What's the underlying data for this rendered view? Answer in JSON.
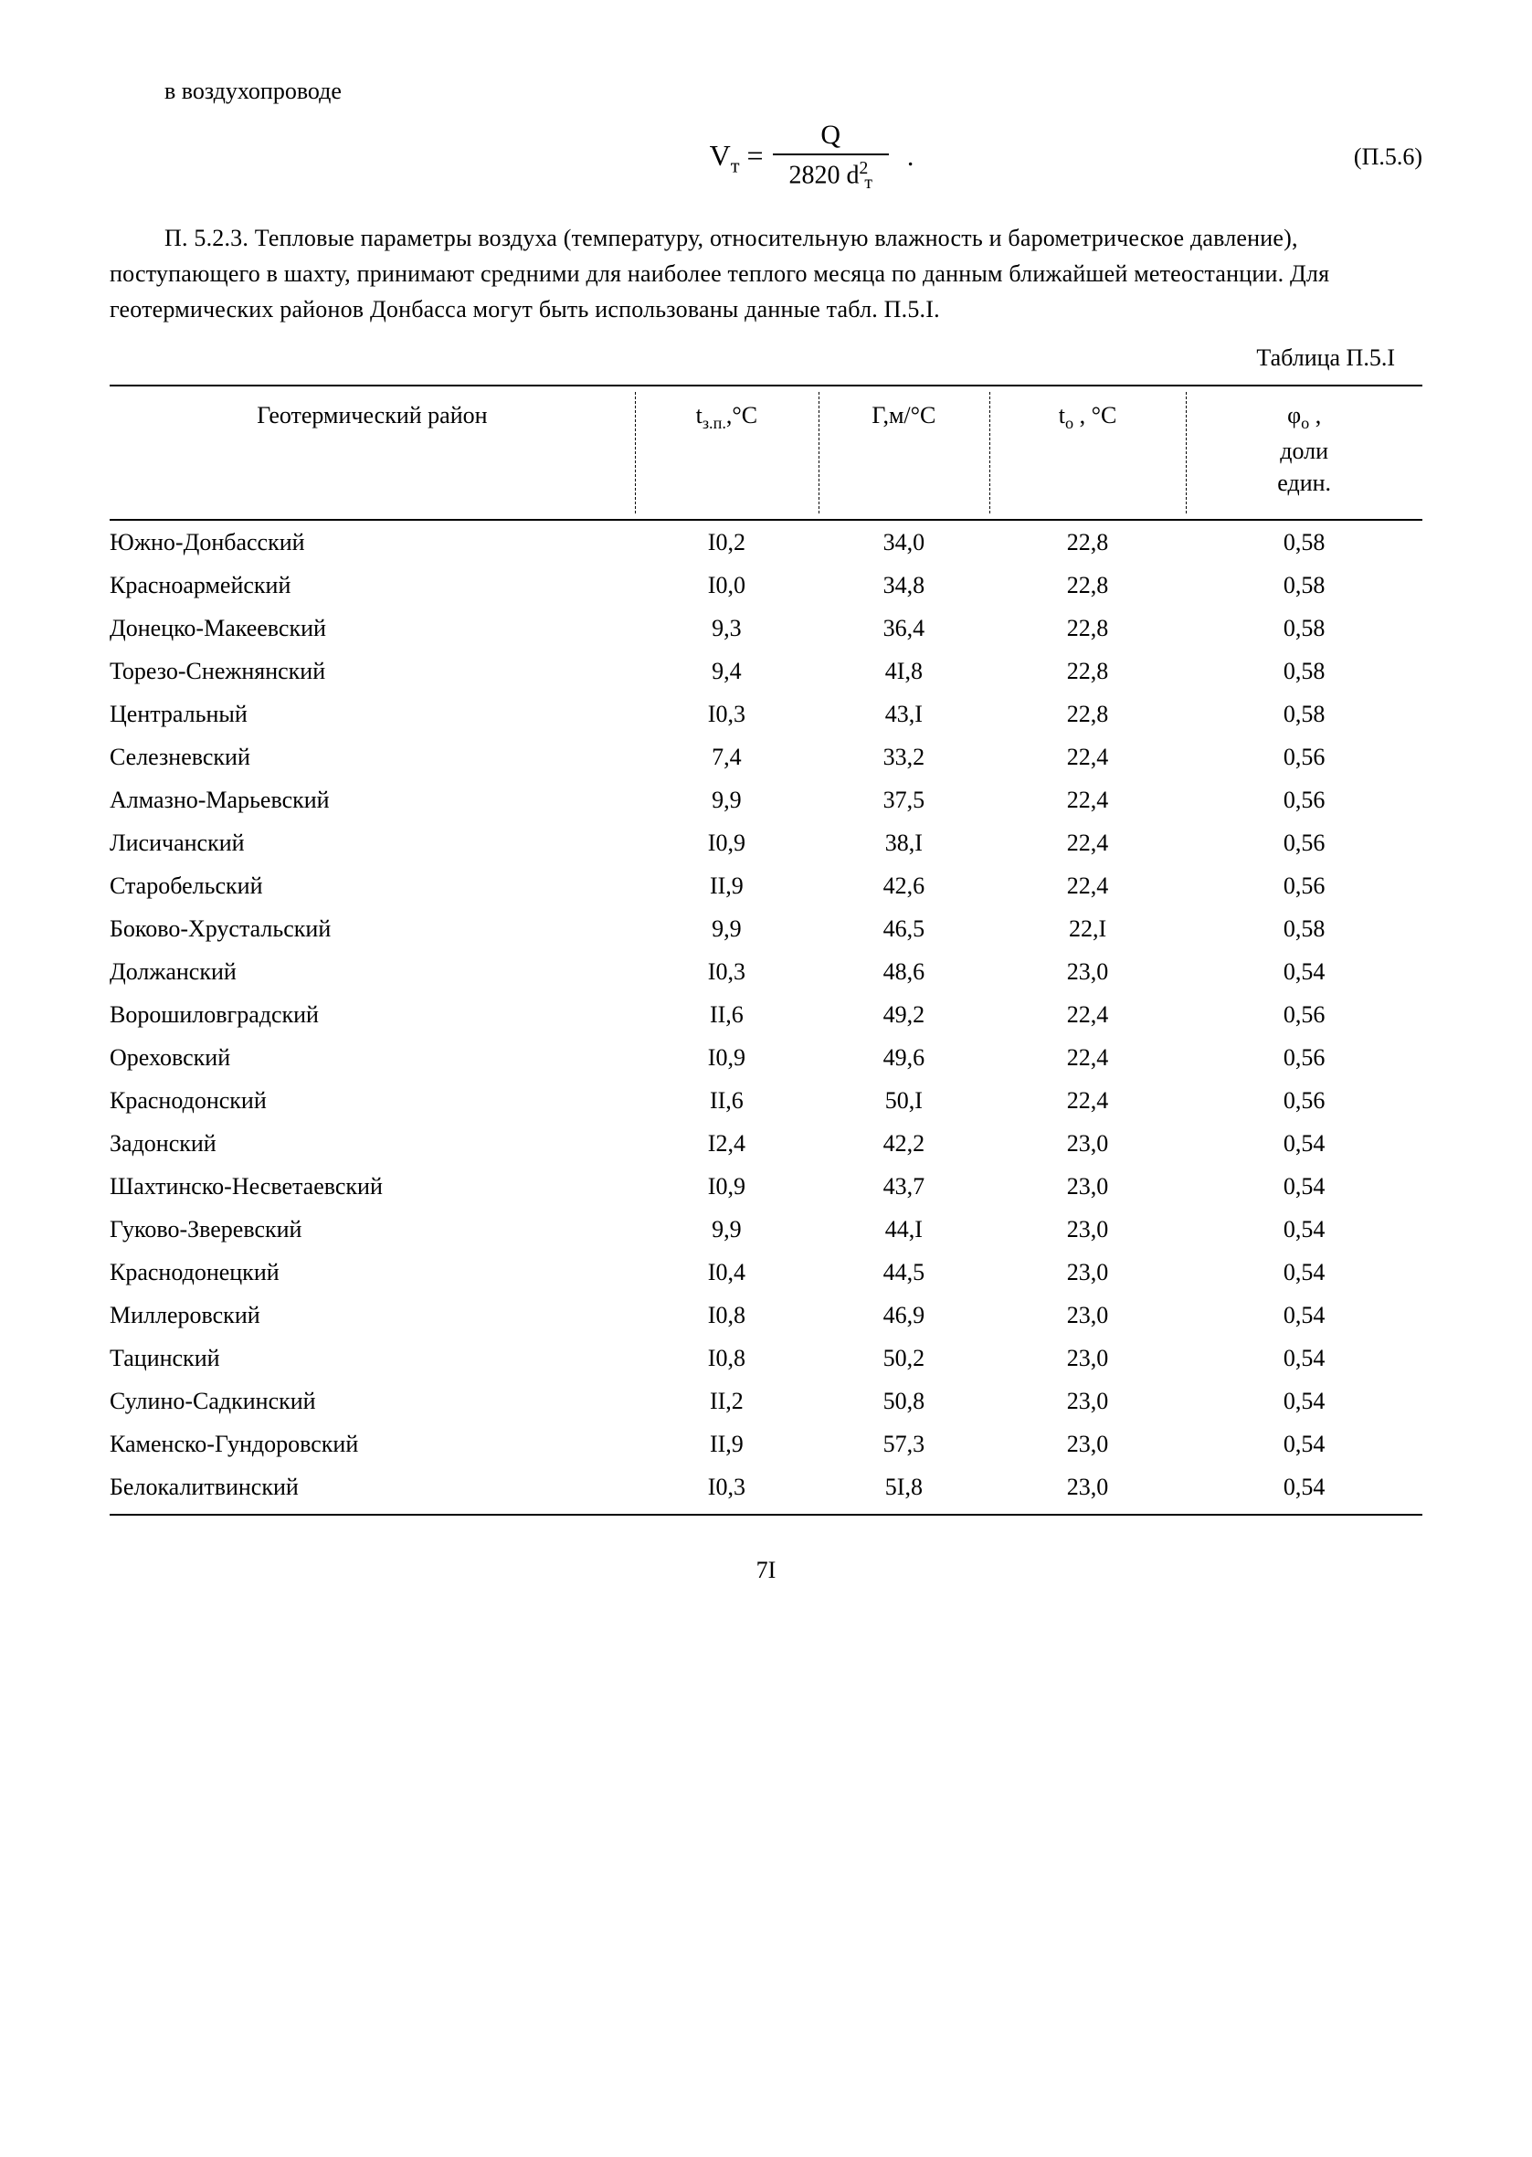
{
  "intro_line": "в воздухопроводе",
  "formula": {
    "lhs": "V",
    "lhs_sub": "т",
    "eq": "=",
    "num": "Q",
    "den_num": "2820 d",
    "den_sub": "т",
    "den_sup": "2",
    "period": ".",
    "ref": "(П.5.6)"
  },
  "paragraph": "П. 5.2.3. Тепловые параметры воздуха (температуру, относительную влажность и барометрическое давление), поступающего в шахту, принимают средними для наиболее теплого месяца по данным ближайшей метеостанции. Для геотермических районов Донбасса могут быть использованы данные табл. П.5.I.",
  "table_label": "Таблица П.5.I",
  "table": {
    "headers": {
      "region": "Геотермический район",
      "col1_main": "t",
      "col1_sub": "з.п.",
      "col1_unit": ",°С",
      "col2_main": "Г",
      "col2_unit": ",м/°С",
      "col3_main": "t",
      "col3_sub": "о",
      "col3_unit": " , °С",
      "col4_main": "φ",
      "col4_sub": "о",
      "col4_tail": " ,",
      "col4_line2": "доли",
      "col4_line3": "един."
    },
    "rows": [
      {
        "region": "Южно-Донбасский",
        "c1": "I0,2",
        "c2": "34,0",
        "c3": "22,8",
        "c4": "0,58"
      },
      {
        "region": "Красноармейский",
        "c1": "I0,0",
        "c2": "34,8",
        "c3": "22,8",
        "c4": "0,58"
      },
      {
        "region": "Донецко-Макеевский",
        "c1": "9,3",
        "c2": "36,4",
        "c3": "22,8",
        "c4": "0,58"
      },
      {
        "region": "Торезо-Снежнянский",
        "c1": "9,4",
        "c2": "4I,8",
        "c3": "22,8",
        "c4": "0,58"
      },
      {
        "region": "Центральный",
        "c1": "I0,3",
        "c2": "43,I",
        "c3": "22,8",
        "c4": "0,58"
      },
      {
        "region": "Селезневский",
        "c1": "7,4",
        "c2": "33,2",
        "c3": "22,4",
        "c4": "0,56"
      },
      {
        "region": "Алмазно-Марьевский",
        "c1": "9,9",
        "c2": "37,5",
        "c3": "22,4",
        "c4": "0,56"
      },
      {
        "region": "Лисичанский",
        "c1": "I0,9",
        "c2": "38,I",
        "c3": "22,4",
        "c4": "0,56"
      },
      {
        "region": "Старобельский",
        "c1": "II,9",
        "c2": "42,6",
        "c3": "22,4",
        "c4": "0,56"
      },
      {
        "region": "Боково-Хрустальский",
        "c1": "9,9",
        "c2": "46,5",
        "c3": "22,I",
        "c4": "0,58"
      },
      {
        "region": "Должанский",
        "c1": "I0,3",
        "c2": "48,6",
        "c3": "23,0",
        "c4": "0,54"
      },
      {
        "region": "Ворошиловградский",
        "c1": "II,6",
        "c2": "49,2",
        "c3": "22,4",
        "c4": "0,56"
      },
      {
        "region": "Ореховский",
        "c1": "I0,9",
        "c2": "49,6",
        "c3": "22,4",
        "c4": "0,56"
      },
      {
        "region": "Краснодонский",
        "c1": "II,6",
        "c2": "50,I",
        "c3": "22,4",
        "c4": "0,56"
      },
      {
        "region": "Задонский",
        "c1": "I2,4",
        "c2": "42,2",
        "c3": "23,0",
        "c4": "0,54"
      },
      {
        "region": "Шахтинско-Несветаевский",
        "c1": "I0,9",
        "c2": "43,7",
        "c3": "23,0",
        "c4": "0,54"
      },
      {
        "region": "Гуково-Зверевский",
        "c1": "9,9",
        "c2": "44,I",
        "c3": "23,0",
        "c4": "0,54"
      },
      {
        "region": "Краснодонецкий",
        "c1": "I0,4",
        "c2": "44,5",
        "c3": "23,0",
        "c4": "0,54"
      },
      {
        "region": "Миллеровский",
        "c1": "I0,8",
        "c2": "46,9",
        "c3": "23,0",
        "c4": "0,54"
      },
      {
        "region": "Тацинский",
        "c1": "I0,8",
        "c2": "50,2",
        "c3": "23,0",
        "c4": "0,54"
      },
      {
        "region": "Сулино-Садкинский",
        "c1": "II,2",
        "c2": "50,8",
        "c3": "23,0",
        "c4": "0,54"
      },
      {
        "region": "Каменско-Гундоровский",
        "c1": "II,9",
        "c2": "57,3",
        "c3": "23,0",
        "c4": "0,54"
      },
      {
        "region": "Белокалитвинский",
        "c1": "I0,3",
        "c2": "5I,8",
        "c3": "23,0",
        "c4": "0,54"
      }
    ]
  },
  "page_number": "7I",
  "colors": {
    "text": "#000000",
    "background": "#ffffff",
    "rule": "#000000"
  }
}
